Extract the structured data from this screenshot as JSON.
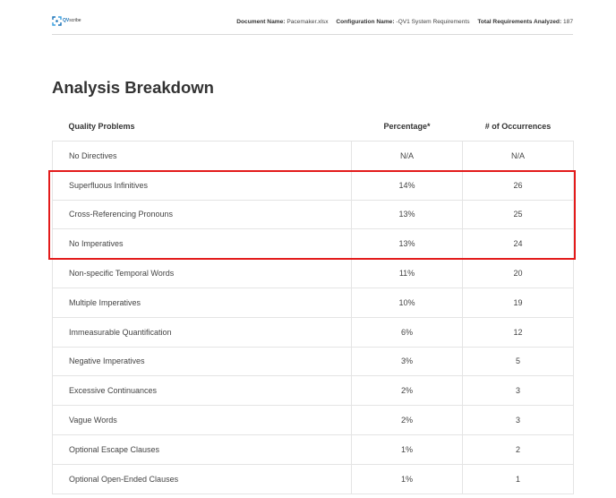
{
  "header": {
    "logo": {
      "brand": "QV",
      "suffix": "scribe",
      "icon": "qvscribe-logo-icon",
      "color": "#1a73b8"
    },
    "document_name_label": "Document Name:",
    "document_name_value": "Pacemaker.xlsx",
    "configuration_name_label": "Configuration Name:",
    "configuration_name_value": "-QV1 System Requirements",
    "total_label": "Total Requirements Analyzed:",
    "total_value": "187"
  },
  "title": "Analysis Breakdown",
  "table": {
    "columns": [
      "Quality Problems",
      "Percentage*",
      "# of Occurrences"
    ],
    "rows": [
      {
        "problem": "No Directives",
        "percentage": "N/A",
        "occurrences": "N/A"
      },
      {
        "problem": "Superfluous Infinitives",
        "percentage": "14%",
        "occurrences": "26"
      },
      {
        "problem": "Cross-Referencing Pronouns",
        "percentage": "13%",
        "occurrences": "25"
      },
      {
        "problem": "No Imperatives",
        "percentage": "13%",
        "occurrences": "24"
      },
      {
        "problem": "Non-specific Temporal Words",
        "percentage": "11%",
        "occurrences": "20"
      },
      {
        "problem": "Multiple Imperatives",
        "percentage": "10%",
        "occurrences": "19"
      },
      {
        "problem": "Immeasurable Quantification",
        "percentage": "6%",
        "occurrences": "12"
      },
      {
        "problem": "Negative Imperatives",
        "percentage": "3%",
        "occurrences": "5"
      },
      {
        "problem": "Excessive Continuances",
        "percentage": "2%",
        "occurrences": "3"
      },
      {
        "problem": "Vague Words",
        "percentage": "2%",
        "occurrences": "3"
      },
      {
        "problem": "Optional Escape Clauses",
        "percentage": "1%",
        "occurrences": "2"
      },
      {
        "problem": "Optional Open-Ended Clauses",
        "percentage": "1%",
        "occurrences": "1"
      }
    ]
  },
  "highlight": {
    "color": "#e31b1b",
    "rows": [
      "Superfluous Infinitives",
      "Cross-Referencing Pronouns",
      "No Imperatives"
    ]
  }
}
